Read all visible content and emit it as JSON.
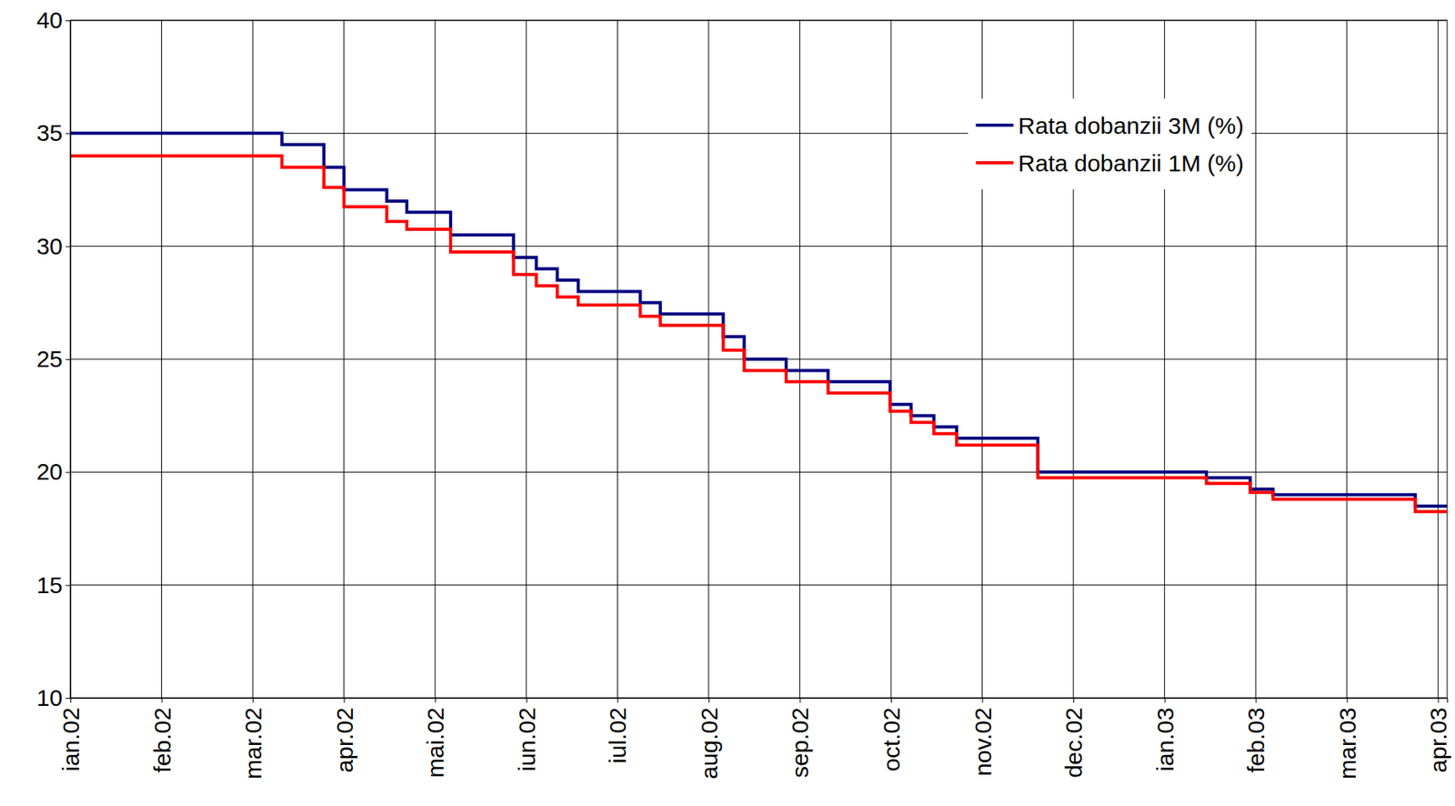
{
  "chart_data": {
    "type": "line",
    "line_style": "step",
    "grid": true,
    "legend": "upper right",
    "x": [
      0,
      2.32,
      2.78,
      3.0,
      3.47,
      3.69,
      4.17,
      4.86,
      5.11,
      5.34,
      5.57,
      6.25,
      6.47,
      7.16,
      7.39,
      7.85,
      8.31,
      8.99,
      9.22,
      9.47,
      9.72,
      10.61,
      12.46,
      12.94,
      13.19,
      14.75,
      15.1
    ],
    "series": [
      {
        "name": "Rata dobanzii 3M (%)",
        "color": "#000080",
        "values": [
          35,
          34.5,
          33.5,
          32.5,
          32,
          31.5,
          30.5,
          29.5,
          29,
          28.5,
          28,
          27.5,
          27,
          26,
          25,
          24.5,
          24,
          23,
          22.5,
          22,
          21.5,
          20,
          19.75,
          19.25,
          19,
          18.5,
          18.5
        ]
      },
      {
        "name": "Rata dobanzii 1M (%)",
        "color": "#ff0000",
        "values": [
          34,
          33.5,
          32.6,
          31.75,
          31.1,
          30.75,
          29.75,
          28.75,
          28.25,
          27.75,
          27.4,
          26.9,
          26.5,
          25.4,
          24.5,
          24,
          23.5,
          22.7,
          22.2,
          21.7,
          21.2,
          19.75,
          19.5,
          19.1,
          18.8,
          18.25,
          18.25
        ]
      }
    ],
    "xlim": [
      0,
      15.1
    ],
    "xticks": [
      {
        "value": 0,
        "label": "ian.02"
      },
      {
        "value": 1,
        "label": "feb.02"
      },
      {
        "value": 2,
        "label": "mar.02"
      },
      {
        "value": 3,
        "label": "apr.02"
      },
      {
        "value": 4,
        "label": "mai.02"
      },
      {
        "value": 5,
        "label": "iun.02"
      },
      {
        "value": 6,
        "label": "iul.02"
      },
      {
        "value": 7,
        "label": "aug.02"
      },
      {
        "value": 8,
        "label": "sep.02"
      },
      {
        "value": 9,
        "label": "oct.02"
      },
      {
        "value": 10,
        "label": "nov.02"
      },
      {
        "value": 11,
        "label": "dec.02"
      },
      {
        "value": 12,
        "label": "ian.03"
      },
      {
        "value": 13,
        "label": "feb.03"
      },
      {
        "value": 14,
        "label": "mar.03"
      },
      {
        "value": 15,
        "label": "apr.03"
      }
    ],
    "ylim": [
      10,
      40
    ],
    "yticks": [
      10,
      15,
      20,
      25,
      30,
      35,
      40
    ]
  }
}
